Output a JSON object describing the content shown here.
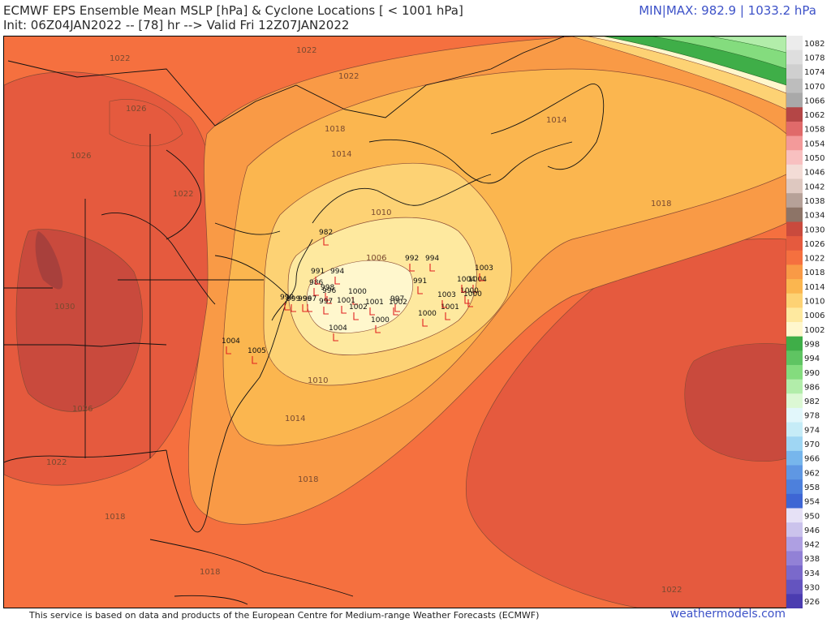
{
  "header": {
    "title": "ECMWF EPS Ensemble Mean MSLP [hPa] & Cyclone Locations [ < 1001 hPa]",
    "init": "Init: 06Z04JAN2022 -- [78] hr --> Valid Fri 12Z07JAN2022",
    "minmax": "MIN|MAX: 982.9 | 1033.2 hPa"
  },
  "footer": {
    "credit": "This service is based on data and products of the European Centre for Medium-range Weather Forecasts (ECMWF)",
    "brand": "weathermodels.com"
  },
  "isobar_labels": [
    {
      "text": "1022",
      "label": "north"
    },
    {
      "text": "1022",
      "label": "northwest"
    },
    {
      "text": "1026",
      "label": "canada"
    },
    {
      "text": "1022",
      "label": "quebec"
    },
    {
      "text": "1018",
      "label": "quebec-south"
    },
    {
      "text": "1014",
      "label": "newfoundland"
    },
    {
      "text": "1014",
      "label": "maine"
    },
    {
      "text": "1010",
      "label": "nova-scotia"
    },
    {
      "text": "1026",
      "label": "midwest"
    },
    {
      "text": "1022",
      "label": "great-lakes"
    },
    {
      "text": "1030",
      "label": "plains"
    },
    {
      "text": "1026",
      "label": "south"
    },
    {
      "text": "1022",
      "label": "texas-coast"
    },
    {
      "text": "1018",
      "label": "gulf"
    },
    {
      "text": "1018",
      "label": "atlantic"
    },
    {
      "text": "1018",
      "label": "east-atlantic"
    },
    {
      "text": "1014",
      "label": "offshore"
    },
    {
      "text": "1010",
      "label": "offshore-inner"
    },
    {
      "text": "1006",
      "label": "core"
    },
    {
      "text": "1018",
      "label": "caribbean"
    },
    {
      "text": "1022",
      "label": "south-atlantic"
    }
  ],
  "cyclones": [
    {
      "value": "992",
      "label": "c1"
    },
    {
      "value": "994",
      "label": "c2"
    },
    {
      "value": "982",
      "label": "c3"
    },
    {
      "value": "986",
      "label": "c4"
    },
    {
      "value": "991",
      "label": "c5"
    },
    {
      "value": "994",
      "label": "c6"
    },
    {
      "value": "996",
      "label": "c7"
    },
    {
      "value": "998",
      "label": "c8"
    },
    {
      "value": "999",
      "label": "c9"
    },
    {
      "value": "997",
      "label": "c10"
    },
    {
      "value": "1000",
      "label": "c11"
    },
    {
      "value": "1001",
      "label": "c12"
    },
    {
      "value": "1002",
      "label": "c13"
    },
    {
      "value": "997",
      "label": "c14"
    },
    {
      "value": "1002",
      "label": "c15"
    },
    {
      "value": "1000",
      "label": "c16"
    },
    {
      "value": "1004",
      "label": "c17"
    },
    {
      "value": "1004",
      "label": "c18"
    },
    {
      "value": "1000",
      "label": "c19"
    },
    {
      "value": "1001",
      "label": "c20"
    },
    {
      "value": "1003",
      "label": "c21"
    },
    {
      "value": "1000",
      "label": "c22"
    },
    {
      "value": "1003",
      "label": "c23"
    },
    {
      "value": "1004",
      "label": "c24"
    },
    {
      "value": "1000",
      "label": "c25"
    },
    {
      "value": "991",
      "label": "c26"
    },
    {
      "value": "1004",
      "label": "c27"
    },
    {
      "value": "1005",
      "label": "c28"
    },
    {
      "value": "999",
      "label": "c29"
    },
    {
      "value": "997",
      "label": "c30"
    },
    {
      "value": "996",
      "label": "c31"
    },
    {
      "value": "1001",
      "label": "c32"
    }
  ],
  "scale": [
    {
      "v": "1082",
      "c": "#ececec"
    },
    {
      "v": "1078",
      "c": "#dedede"
    },
    {
      "v": "1074",
      "c": "#cfcfcf"
    },
    {
      "v": "1070",
      "c": "#bdbdbd"
    },
    {
      "v": "1066",
      "c": "#a9a9a9"
    },
    {
      "v": "1062",
      "c": "#b44646"
    },
    {
      "v": "1058",
      "c": "#e06a6a"
    },
    {
      "v": "1054",
      "c": "#f39a9a"
    },
    {
      "v": "1050",
      "c": "#f8c0c0"
    },
    {
      "v": "1046",
      "c": "#f3dcd6"
    },
    {
      "v": "1042",
      "c": "#dec8c0"
    },
    {
      "v": "1038",
      "c": "#b6a198"
    },
    {
      "v": "1034",
      "c": "#8d7467"
    },
    {
      "v": "1030",
      "c": "#c94a3d"
    },
    {
      "v": "1026",
      "c": "#e55a3e"
    },
    {
      "v": "1022",
      "c": "#f5703f"
    },
    {
      "v": "1018",
      "c": "#f99a46"
    },
    {
      "v": "1014",
      "c": "#fbb64f"
    },
    {
      "v": "1010",
      "c": "#fdd274"
    },
    {
      "v": "1006",
      "c": "#fee99f"
    },
    {
      "v": "1002",
      "c": "#fff7cd"
    },
    {
      "v": "998",
      "c": "#3fae48"
    },
    {
      "v": "994",
      "c": "#5fc462"
    },
    {
      "v": "990",
      "c": "#84dc7e"
    },
    {
      "v": "986",
      "c": "#b2edaa"
    },
    {
      "v": "982",
      "c": "#dcf8d4"
    },
    {
      "v": "978",
      "c": "#e2f7fb"
    },
    {
      "v": "974",
      "c": "#c6ecf7"
    },
    {
      "v": "970",
      "c": "#9fd6f3"
    },
    {
      "v": "966",
      "c": "#77b6ec"
    },
    {
      "v": "962",
      "c": "#5f97e3"
    },
    {
      "v": "958",
      "c": "#4d80dc"
    },
    {
      "v": "954",
      "c": "#3e66d4"
    },
    {
      "v": "950",
      "c": "#e6e1f6"
    },
    {
      "v": "946",
      "c": "#cbc3ec"
    },
    {
      "v": "942",
      "c": "#ae9fe2"
    },
    {
      "v": "938",
      "c": "#9281d6"
    },
    {
      "v": "934",
      "c": "#7a69cb"
    },
    {
      "v": "930",
      "c": "#6454bf"
    },
    {
      "v": "926",
      "c": "#4b3cb0"
    }
  ]
}
